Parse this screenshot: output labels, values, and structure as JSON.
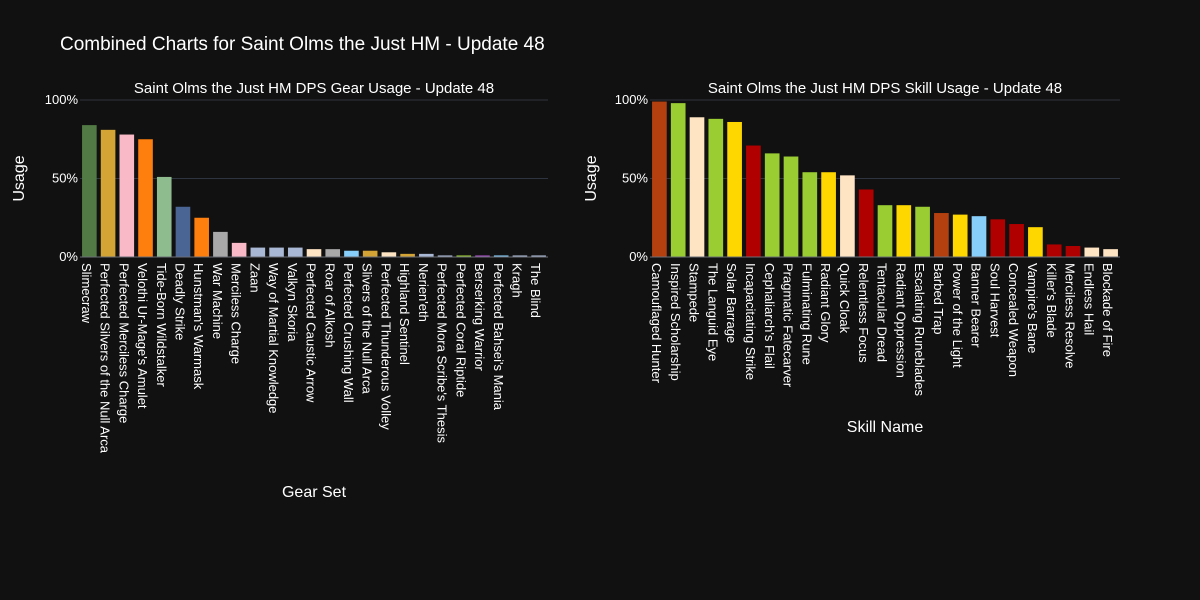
{
  "title": "Combined Charts for Saint Olms the Just HM - Update 48",
  "chart_data": [
    {
      "type": "bar",
      "title": "Saint Olms the Just HM DPS Gear Usage - Update 48",
      "xlabel": "Gear Set",
      "ylabel": "Usage",
      "ylim": [
        0,
        100
      ],
      "yticks": [
        "0%",
        "50%",
        "100%"
      ],
      "grid": true,
      "categories": [
        "Slimecraw",
        "Perfected Silvers of the Null Arca",
        "Perfected Merciless Charge",
        "Velothi Ur-Mage's Amulet",
        "Tide-Born Wildstalker",
        "Deadly Strike",
        "Hunstman's Warmask",
        "War Machine",
        "Merciless Charge",
        "Zaan",
        "Way of Martial Knowledge",
        "Valkyn Skoria",
        "Perfected Caustic Arrow",
        "Roar of Alkosh",
        "Perfected Crushing Wall",
        "Slivers of the Null Arca",
        "Perfected Thunderous Volley",
        "Highland Sentinel",
        "Nerien'eth",
        "Perfected Mora Scribe's Thesis",
        "Perfected Coral Riptide",
        "Berserking Warrior",
        "Perfected Bahsei's Mania",
        "Kragh",
        "The Blind"
      ],
      "values": [
        84,
        81,
        78,
        75,
        51,
        32,
        25,
        16,
        9,
        6,
        6,
        6,
        5,
        5,
        4,
        4,
        3,
        2,
        2,
        1,
        1,
        1,
        1,
        1,
        1
      ],
      "colors": [
        "#527a44",
        "#d4a435",
        "#f9b9c7",
        "#ff7f0e",
        "#8fbc8f",
        "#4a6593",
        "#ff7f0e",
        "#a9a9a9",
        "#f9b9c7",
        "#a9b8d4",
        "#a9b8d4",
        "#a9b8d4",
        "#ffe4c4",
        "#a9a9a9",
        "#87cefa",
        "#d4a435",
        "#ffe4c4",
        "#d4a435",
        "#a9b8d4",
        "#a9b8d4",
        "#9acd32",
        "#a64ec4",
        "#87cefa",
        "#a9b8d4",
        "#a9b8d4"
      ]
    },
    {
      "type": "bar",
      "title": "Saint Olms the Just HM DPS Skill Usage - Update 48",
      "xlabel": "Skill Name",
      "ylabel": "Usage",
      "ylim": [
        0,
        100
      ],
      "yticks": [
        "0%",
        "50%",
        "100%"
      ],
      "grid": true,
      "categories": [
        "Camouflaged Hunter",
        "Inspired Scholarship",
        "Stampede",
        "The Languid Eye",
        "Solar Barrage",
        "Incapacitating Strike",
        "Cephaliarch's Flail",
        "Pragmatic Fatecarver",
        "Fulminating Rune",
        "Radiant Glory",
        "Quick Cloak",
        "Relentless Focus",
        "Tentacular Dread",
        "Radiant Oppression",
        "Escalating Runeblades",
        "Barbed Trap",
        "Power of the Light",
        "Banner Bearer",
        "Soul Harvest",
        "Concealed Weapon",
        "Vampire's Bane",
        "Killer's Blade",
        "Merciless Resolve",
        "Endless Hail",
        "Blockade of Fire"
      ],
      "values": [
        99,
        98,
        89,
        88,
        86,
        71,
        66,
        64,
        54,
        54,
        52,
        43,
        33,
        33,
        32,
        28,
        27,
        26,
        24,
        21,
        19,
        8,
        7,
        6,
        5
      ],
      "colors": [
        "#b5400f",
        "#9acd32",
        "#ffe4c4",
        "#9acd32",
        "#ffd700",
        "#b00000",
        "#9acd32",
        "#9acd32",
        "#9acd32",
        "#ffd700",
        "#ffe4c4",
        "#b00000",
        "#9acd32",
        "#ffd700",
        "#9acd32",
        "#b5400f",
        "#ffd700",
        "#87cefa",
        "#b00000",
        "#b00000",
        "#ffd700",
        "#b00000",
        "#b00000",
        "#ffe4c4",
        "#ffe4c4"
      ]
    }
  ]
}
